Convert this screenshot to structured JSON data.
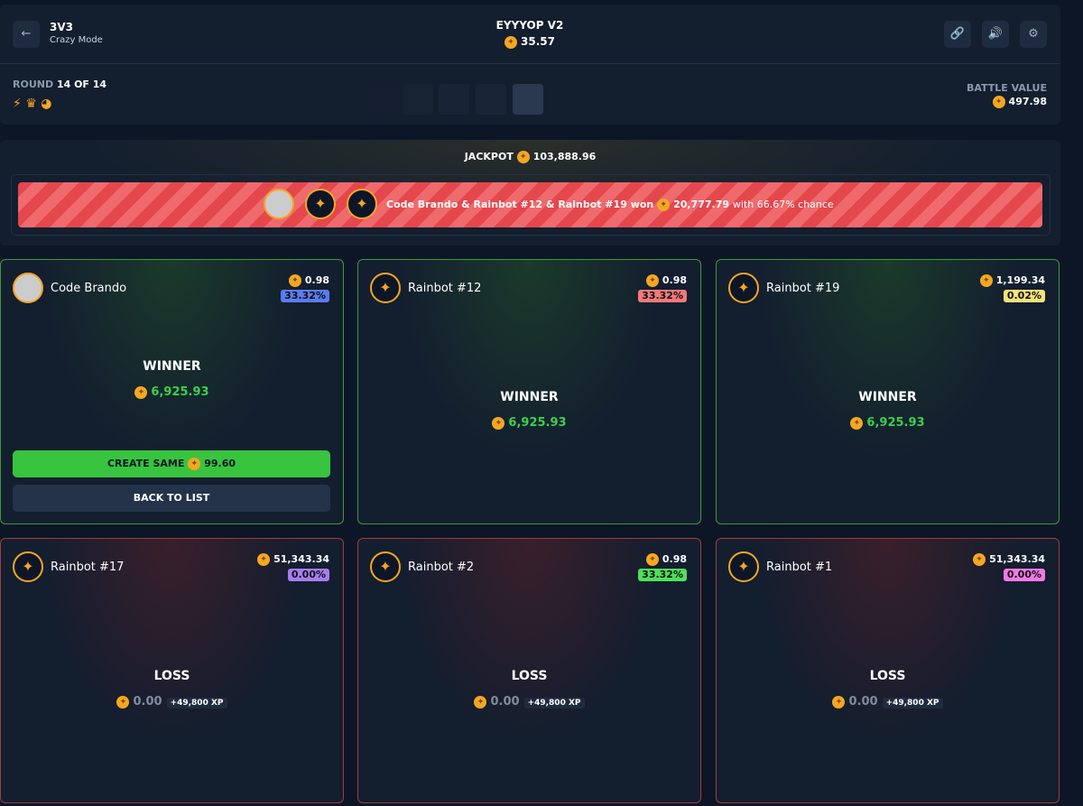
{
  "header": {
    "mode": "3V3",
    "submode": "Crazy Mode",
    "title": "EYYYOP V2",
    "value": "35.57"
  },
  "round": {
    "label": "ROUND",
    "value": "14 OF 14"
  },
  "battle_value": {
    "label": "BATTLE VALUE",
    "value": "497.98"
  },
  "jackpot": {
    "label": "JACKPOT",
    "value": "103,888.96",
    "winners": "Code Brando & Rainbot #12 & Rainbot #19 won",
    "amount": "20,777.79",
    "suffix": "with 66.67% chance"
  },
  "players": [
    {
      "name": "Code Brando",
      "value": "0.98",
      "chance": "33.32%",
      "chance_color": "#5b7cf0",
      "result": "WINNER",
      "payout": "6,925.93",
      "status": "win"
    },
    {
      "name": "Rainbot #12",
      "value": "0.98",
      "chance": "33.32%",
      "chance_color": "#f07a7a",
      "result": "WINNER",
      "payout": "6,925.93",
      "status": "win"
    },
    {
      "name": "Rainbot #19",
      "value": "1,199.34",
      "chance": "0.02%",
      "chance_color": "#f5e27a",
      "result": "WINNER",
      "payout": "6,925.93",
      "status": "win"
    },
    {
      "name": "Rainbot #17",
      "value": "51,343.34",
      "chance": "0.00%",
      "chance_color": "#a77cf2",
      "result": "LOSS",
      "payout": "0.00",
      "xp": "+49,800 XP",
      "status": "loss"
    },
    {
      "name": "Rainbot #2",
      "value": "0.98",
      "chance": "33.32%",
      "chance_color": "#4ee05a",
      "result": "LOSS",
      "payout": "0.00",
      "xp": "+49,800 XP",
      "status": "loss"
    },
    {
      "name": "Rainbot #1",
      "value": "51,343.34",
      "chance": "0.00%",
      "chance_color": "#f27ae6",
      "result": "LOSS",
      "payout": "0.00",
      "xp": "+49,800 XP",
      "status": "loss"
    }
  ],
  "actions": {
    "create_same": "CREATE SAME",
    "create_same_value": "99.60",
    "back": "BACK TO LIST"
  }
}
